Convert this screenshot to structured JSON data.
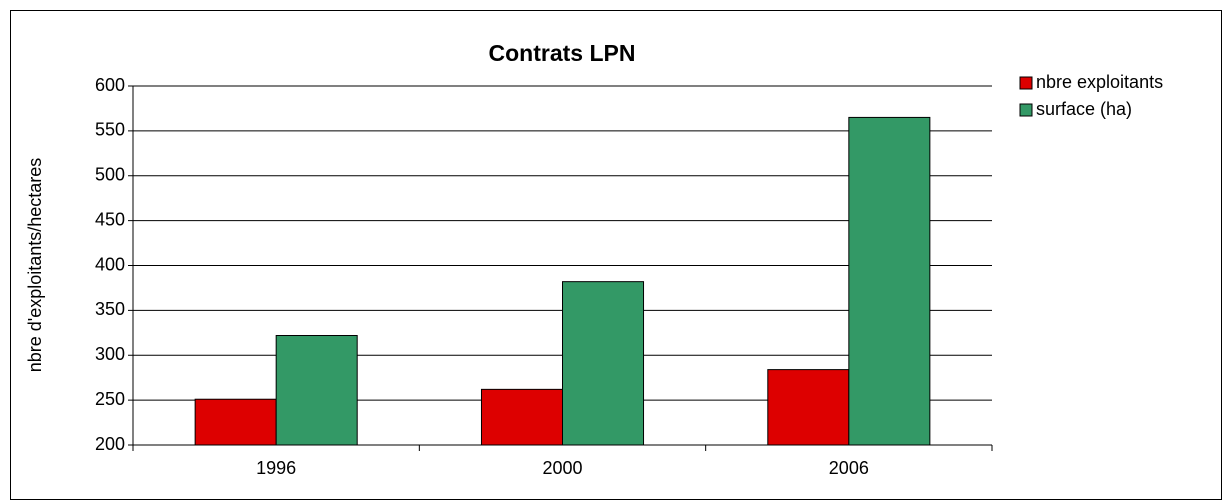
{
  "chart_data": {
    "type": "bar",
    "title": "Contrats LPN",
    "y_label": "nbre d'exploitants/hectares",
    "categories": [
      "1996",
      "2000",
      "2006"
    ],
    "series": [
      {
        "name": "nbre exploitants",
        "color": "#dd0000",
        "values": [
          251,
          262,
          284
        ]
      },
      {
        "name": "surface (ha)",
        "color": "#339966",
        "values": [
          322,
          382,
          565
        ]
      }
    ],
    "ylim": [
      200,
      600
    ],
    "yticks": [
      200,
      250,
      300,
      350,
      400,
      450,
      500,
      550,
      600
    ],
    "grid": true,
    "legend": "right"
  }
}
